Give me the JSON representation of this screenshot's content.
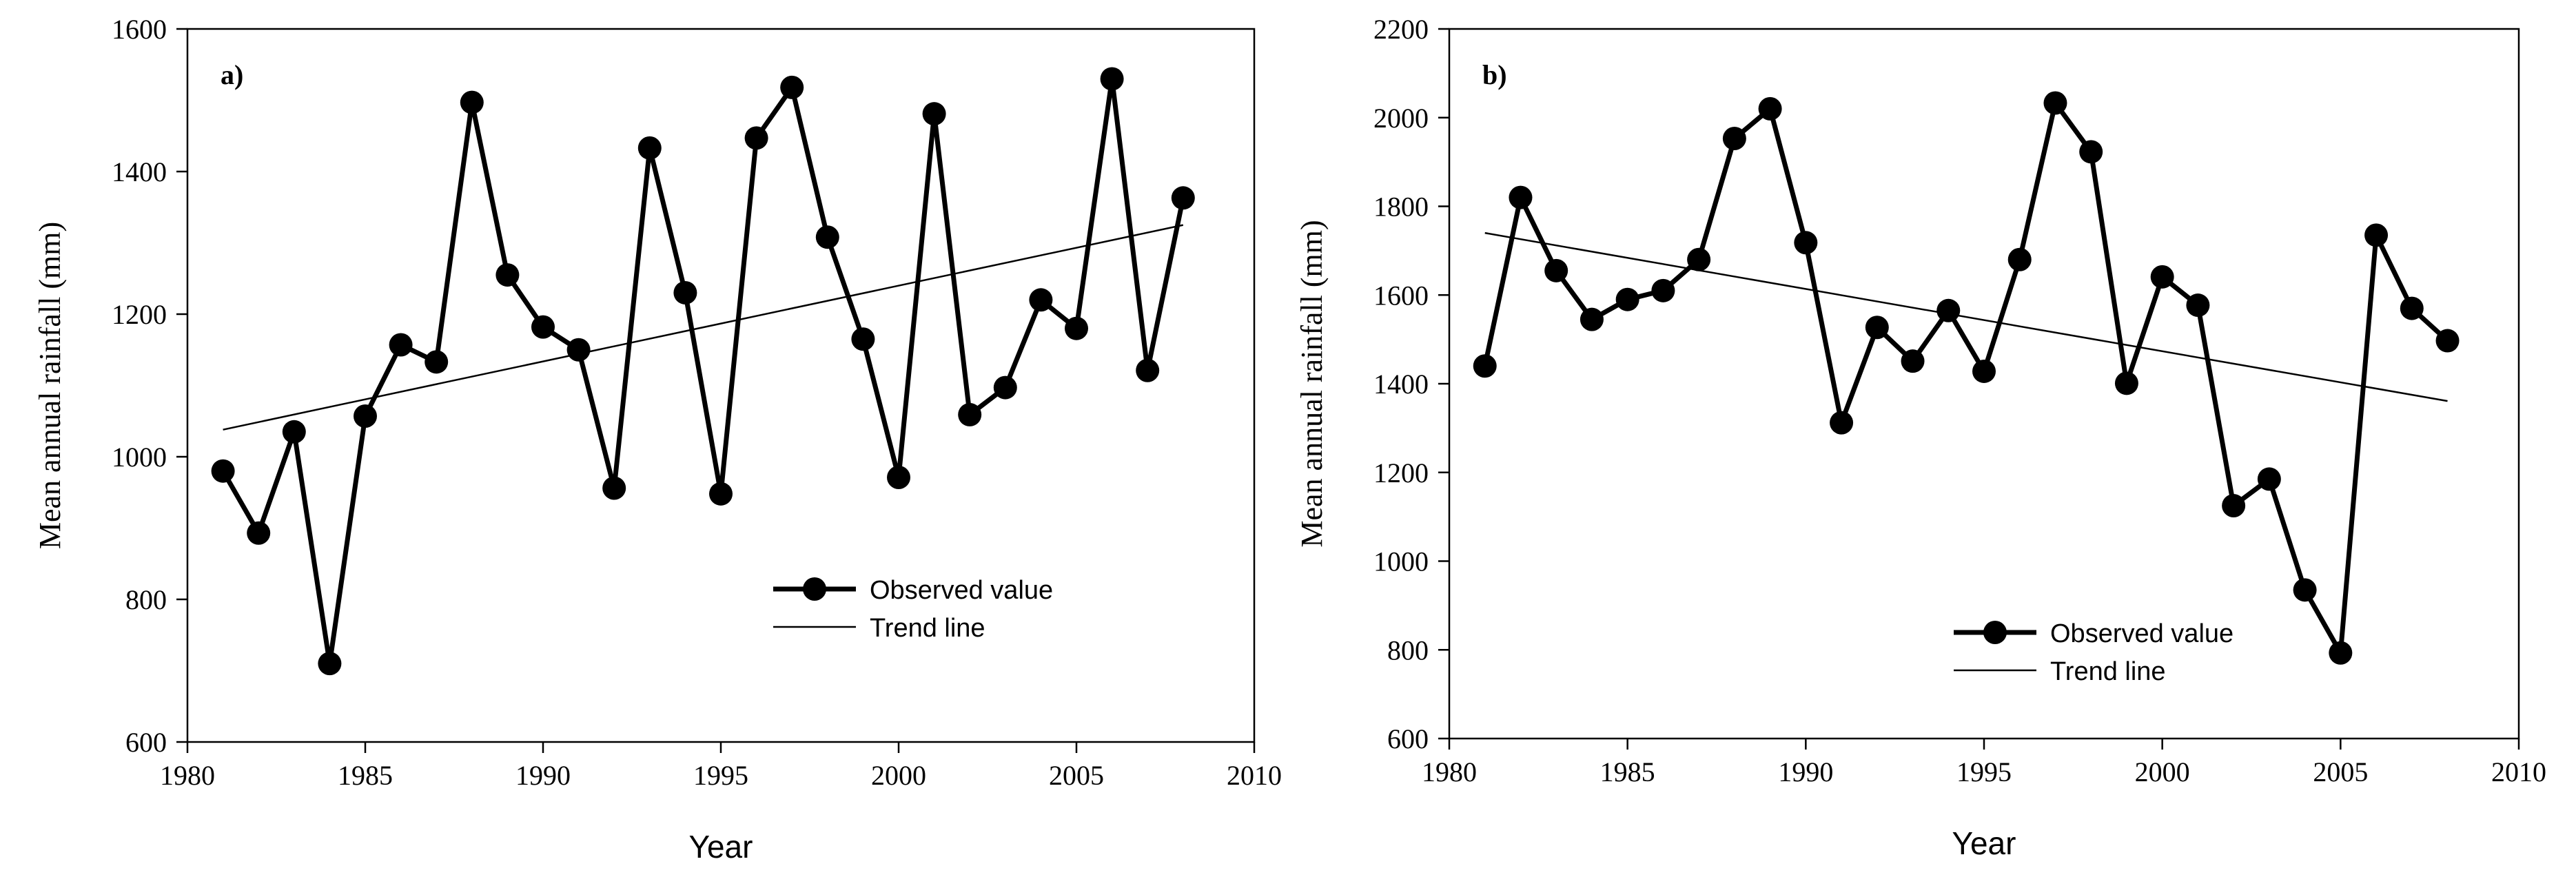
{
  "chart_data": [
    {
      "type": "line",
      "panel_label": "a)",
      "xlabel": "Year",
      "ylabel": "Mean annual rainfall (mm)",
      "xlim": [
        1980,
        2010
      ],
      "ylim": [
        600,
        1600
      ],
      "xticks": [
        1980,
        1985,
        1990,
        1995,
        2000,
        2005,
        2010
      ],
      "yticks": [
        600,
        800,
        1000,
        1200,
        1400,
        1600
      ],
      "x": [
        1981,
        1982,
        1983,
        1984,
        1985,
        1986,
        1987,
        1988,
        1989,
        1990,
        1991,
        1992,
        1993,
        1994,
        1995,
        1996,
        1997,
        1998,
        1999,
        2000,
        2001,
        2002,
        2003,
        2004,
        2005,
        2006,
        2007,
        2008
      ],
      "series": [
        {
          "name": "Observed value",
          "style": "line-marker",
          "values": [
            980,
            893,
            1035,
            710,
            1057,
            1157,
            1133,
            1497,
            1255,
            1182,
            1150,
            956,
            1433,
            1230,
            948,
            1447,
            1518,
            1308,
            1165,
            971,
            1481,
            1059,
            1097,
            1220,
            1180,
            1530,
            1121,
            1363
          ]
        },
        {
          "name": "Trend line",
          "style": "line",
          "x": [
            1981,
            2008
          ],
          "values": [
            1038,
            1325
          ]
        }
      ],
      "legend": {
        "position": "lower-right",
        "items": [
          "Observed value",
          "Trend line"
        ]
      }
    },
    {
      "type": "line",
      "panel_label": "b)",
      "xlabel": "Year",
      "ylabel": "Mean annual rainfall (mm)",
      "xlim": [
        1980,
        2010
      ],
      "ylim": [
        600,
        2200
      ],
      "xticks": [
        1980,
        1985,
        1990,
        1995,
        2000,
        2005,
        2010
      ],
      "yticks": [
        600,
        800,
        1000,
        1200,
        1400,
        1600,
        1800,
        2000,
        2200
      ],
      "x": [
        1981,
        1982,
        1983,
        1984,
        1985,
        1986,
        1987,
        1988,
        1989,
        1990,
        1991,
        1992,
        1993,
        1994,
        1995,
        1996,
        1997,
        1998,
        1999,
        2000,
        2001,
        2002,
        2003,
        2004,
        2005,
        2006,
        2007,
        2008
      ],
      "series": [
        {
          "name": "Observed value",
          "style": "line-marker",
          "values": [
            1440,
            1820,
            1655,
            1545,
            1590,
            1610,
            1680,
            1953,
            2020,
            1718,
            1312,
            1527,
            1451,
            1565,
            1428,
            1680,
            2033,
            1923,
            1401,
            1641,
            1577,
            1125,
            1185,
            935,
            793,
            1735,
            1570,
            1497
          ]
        },
        {
          "name": "Trend line",
          "style": "line",
          "x": [
            1981,
            2008
          ],
          "values": [
            1740,
            1361
          ]
        }
      ],
      "legend": {
        "position": "lower-right",
        "items": [
          "Observed value",
          "Trend line"
        ]
      }
    }
  ]
}
